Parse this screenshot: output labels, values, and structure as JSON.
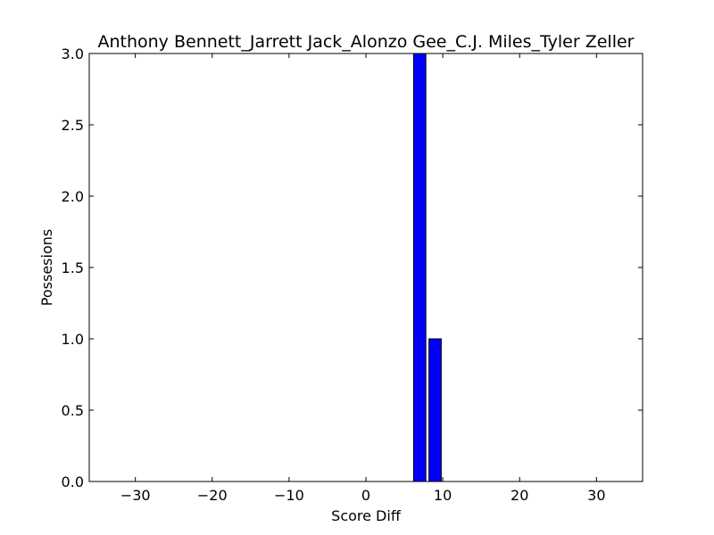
{
  "chart_data": {
    "type": "bar",
    "title": "Anthony Bennett_Jarrett Jack_Alonzo Gee_C.J. Miles_Tyler Zeller",
    "xlabel": "Score Diff",
    "ylabel": "Possesions",
    "xlim": [
      -36,
      36
    ],
    "ylim": [
      0,
      3.0
    ],
    "x_ticks": [
      -30,
      -20,
      -10,
      0,
      10,
      20,
      30
    ],
    "x_tick_labels": [
      "−30",
      "−20",
      "−10",
      "0",
      "10",
      "20",
      "30"
    ],
    "y_ticks": [
      0.0,
      0.5,
      1.0,
      1.5,
      2.0,
      2.5,
      3.0
    ],
    "y_tick_labels": [
      "0.0",
      "0.5",
      "1.0",
      "1.5",
      "2.0",
      "2.5",
      "3.0"
    ],
    "bar_width": 1.6,
    "bar_color": "#0000ff",
    "bars": [
      {
        "x": 7,
        "value": 3
      },
      {
        "x": 9,
        "value": 1
      }
    ],
    "grid": false,
    "legend": "none"
  }
}
